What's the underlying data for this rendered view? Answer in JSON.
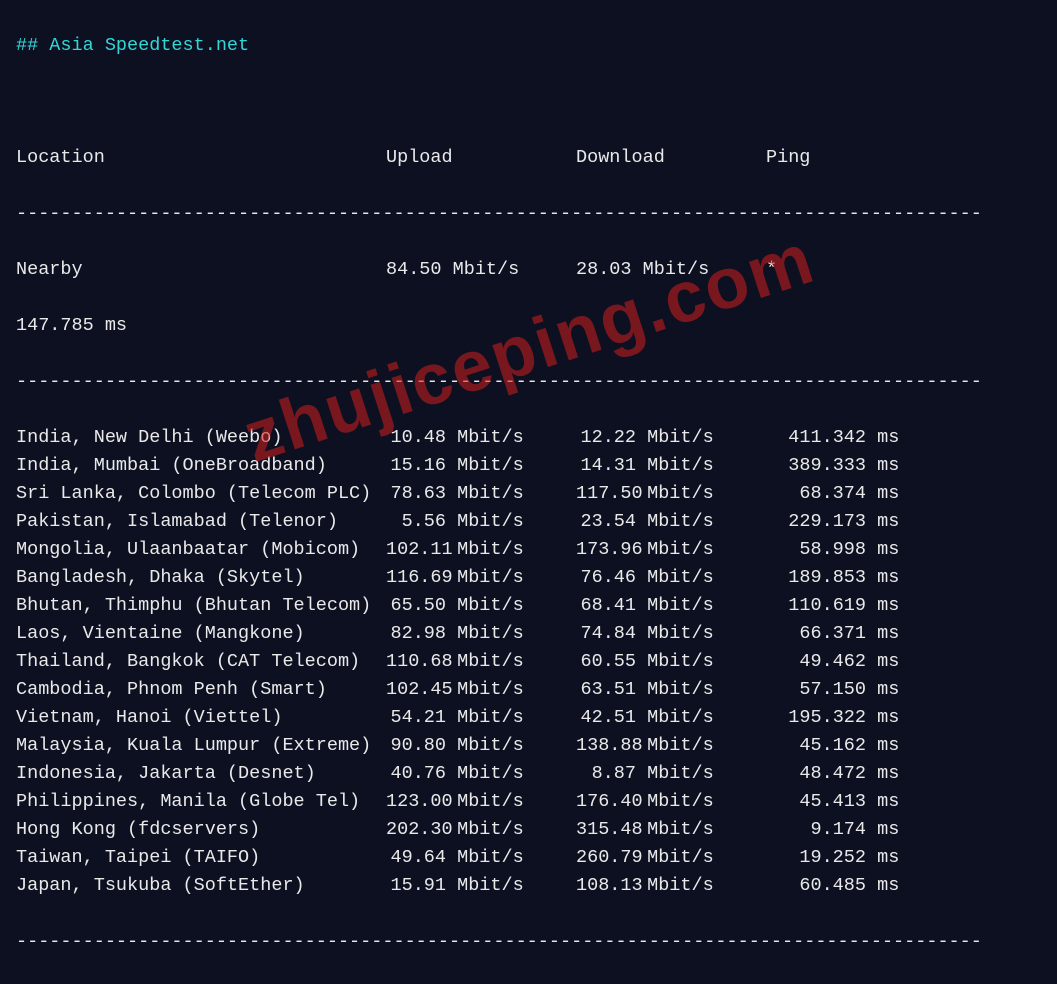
{
  "colors": {
    "background": "#0c1021",
    "text": "#e9e9e9",
    "title": "#33d6d6",
    "watermark": "rgba(210,30,30,0.55)"
  },
  "title": "## Asia Speedtest.net",
  "headers": {
    "location": "Location",
    "upload": "Upload",
    "download": "Download",
    "ping": "Ping"
  },
  "divider": "---------------------------------------------------------------------------------------",
  "nearby": {
    "label": "Nearby",
    "upload": "84.50 Mbit/s",
    "download": "28.03 Mbit/s",
    "ping_marker": "*",
    "latency": "147.785 ms"
  },
  "unit_speed": " Mbit/s",
  "unit_ping": " ms",
  "rows": [
    {
      "loc": "India, New Delhi (Weebo)",
      "up": "10.48",
      "dn": "12.22",
      "ping": "411.342"
    },
    {
      "loc": "India, Mumbai (OneBroadband)",
      "up": "15.16",
      "dn": "14.31",
      "ping": "389.333"
    },
    {
      "loc": "Sri Lanka, Colombo (Telecom PLC)",
      "up": "78.63",
      "dn": "117.50",
      "ping": "68.374"
    },
    {
      "loc": "Pakistan, Islamabad (Telenor)",
      "up": "5.56",
      "dn": "23.54",
      "ping": "229.173"
    },
    {
      "loc": "Mongolia, Ulaanbaatar (Mobicom)",
      "up": "102.11",
      "dn": "173.96",
      "ping": "58.998"
    },
    {
      "loc": "Bangladesh, Dhaka (Skytel)",
      "up": "116.69",
      "dn": "76.46",
      "ping": "189.853"
    },
    {
      "loc": "Bhutan, Thimphu (Bhutan Telecom)",
      "up": "65.50",
      "dn": "68.41",
      "ping": "110.619"
    },
    {
      "loc": "Laos, Vientaine (Mangkone)",
      "up": "82.98",
      "dn": "74.84",
      "ping": "66.371"
    },
    {
      "loc": "Thailand, Bangkok (CAT Telecom)",
      "up": "110.68",
      "dn": "60.55",
      "ping": "49.462"
    },
    {
      "loc": "Cambodia, Phnom Penh (Smart)",
      "up": "102.45",
      "dn": "63.51",
      "ping": "57.150"
    },
    {
      "loc": "Vietnam, Hanoi (Viettel)",
      "up": "54.21",
      "dn": "42.51",
      "ping": "195.322"
    },
    {
      "loc": "Malaysia, Kuala Lumpur (Extreme)",
      "up": "90.80",
      "dn": "138.88",
      "ping": "45.162"
    },
    {
      "loc": "Indonesia, Jakarta (Desnet)",
      "up": "40.76",
      "dn": "8.87",
      "ping": "48.472"
    },
    {
      "loc": "Philippines, Manila (Globe Tel)",
      "up": "123.00",
      "dn": "176.40",
      "ping": "45.413"
    },
    {
      "loc": "Hong Kong (fdcservers)",
      "up": "202.30",
      "dn": "315.48",
      "ping": "9.174"
    },
    {
      "loc": "Taiwan, Taipei (TAIFO)",
      "up": "49.64",
      "dn": "260.79",
      "ping": "19.252"
    },
    {
      "loc": "Japan, Tsukuba (SoftEther)",
      "up": "15.91",
      "dn": "108.13",
      "ping": "60.485"
    }
  ],
  "watermark": "zhujiceping.com"
}
